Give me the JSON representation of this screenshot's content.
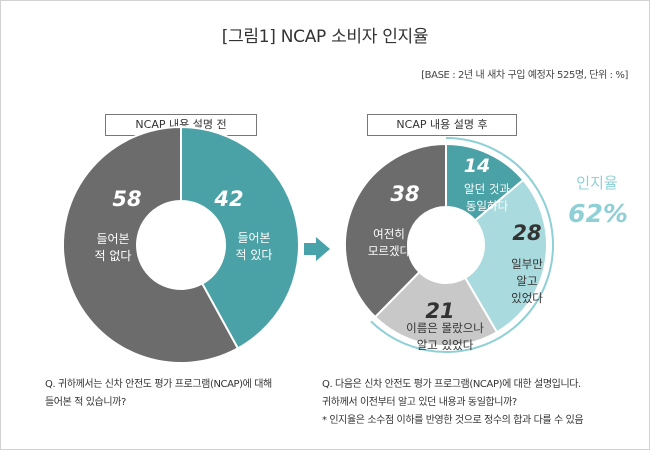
{
  "title": "[그림1] NCAP 소비자 인지율",
  "base_note": "[BASE : 2년 내 새차 구입 예정자 525명, 단위 : %]",
  "colors": {
    "gray": "#6c6c6c",
    "teal": "#4aa2a6",
    "light_teal": "#a9dadd",
    "light_gray": "#c8c8c8",
    "accent_text": "#8fd0d6",
    "arrow": "#47a3a9"
  },
  "chart_data": [
    {
      "type": "pie",
      "title": "NCAP 내용 설명 전",
      "slices": [
        {
          "label": "들어본 적 있다",
          "value": 42
        },
        {
          "label": "들어본 적 없다",
          "value": 58
        }
      ]
    },
    {
      "type": "pie",
      "title": "NCAP 내용 설명 후",
      "slices": [
        {
          "label": "알던 것과 동일하다",
          "value": 14
        },
        {
          "label": "일부만 알고 있었다",
          "value": 28
        },
        {
          "label": "이름은 몰랐으나 알고 있었다",
          "value": 21
        },
        {
          "label": "여전히 모르겠다",
          "value": 38
        }
      ],
      "annotation": {
        "label": "인지율",
        "value": "62%"
      }
    }
  ],
  "questions": {
    "left": [
      "Q. 귀하께서는 신차 안전도 평가 프로그램(NCAP)에 대해",
      "들어본 적 있습니까?"
    ],
    "right": [
      "Q. 다음은 신차 안전도 평가 프로그램(NCAP)에 대한 설명입니다.",
      "귀하께서 이전부터 알고 있던 내용과 동일합니까?",
      "* 인지율은 소수점 이하를 반영한 것으로 정수의 합과 다를 수 있음"
    ]
  }
}
